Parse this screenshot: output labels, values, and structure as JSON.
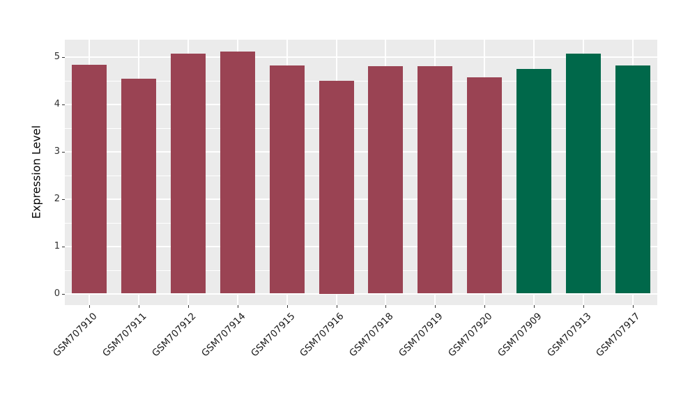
{
  "chart_data": {
    "type": "bar",
    "title": "",
    "xlabel": "",
    "ylabel": "Expression Level",
    "categories": [
      "GSM707910",
      "GSM707911",
      "GSM707912",
      "GSM707914",
      "GSM707915",
      "GSM707916",
      "GSM707918",
      "GSM707919",
      "GSM707920",
      "GSM707909",
      "GSM707913",
      "GSM707917"
    ],
    "values": [
      4.83,
      4.53,
      5.07,
      5.11,
      4.81,
      4.5,
      4.8,
      4.8,
      4.57,
      4.74,
      5.06,
      4.81
    ],
    "bar_colors": [
      "#9A4353",
      "#9A4353",
      "#9A4353",
      "#9A4353",
      "#9A4353",
      "#9A4353",
      "#9A4353",
      "#9A4353",
      "#9A4353",
      "#00684A",
      "#00684A",
      "#00684A"
    ],
    "group_colors": {
      "maroon_group": "#9A4353",
      "green_group": "#00684A"
    },
    "y_ticks": [
      0,
      1,
      2,
      3,
      4,
      5
    ],
    "y_tick_labels": [
      "0",
      "1",
      "2",
      "3",
      "4",
      "5"
    ],
    "y_minor_ticks": [
      0.5,
      1.5,
      2.5,
      3.5,
      4.5
    ],
    "ylim": [
      -0.26,
      5.37
    ],
    "grid": "horizontal major+minor, vertical major at category centers",
    "legend_position": "none",
    "panel_background": "#EBEBEB",
    "grid_color": "#FFFFFF",
    "bar_width_fraction": 0.7
  }
}
